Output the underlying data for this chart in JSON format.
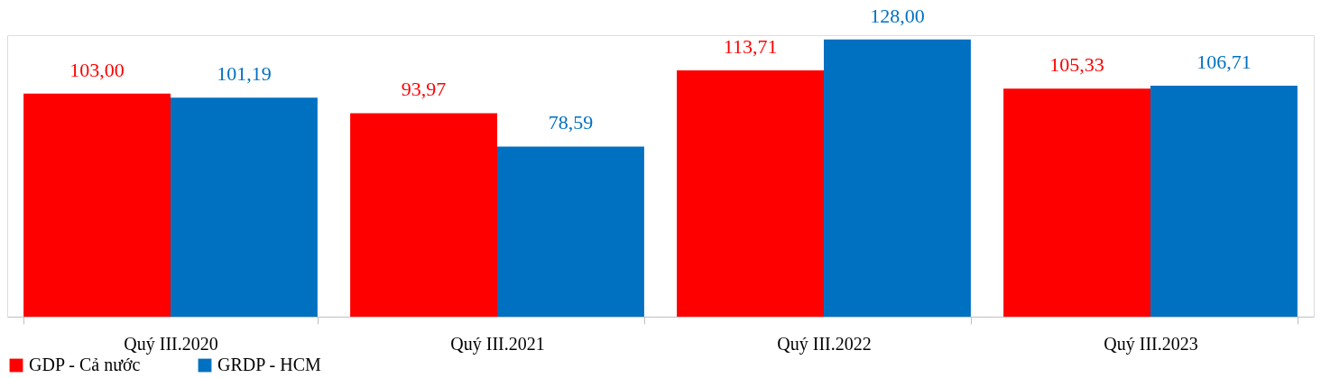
{
  "chart_data": {
    "type": "bar",
    "categories": [
      "Quý III.2020",
      "Quý III.2021",
      "Quý III.2022",
      "Quý III.2023"
    ],
    "series": [
      {
        "name": "GDP - Cả nước",
        "color": "#ff0000",
        "values": [
          103.0,
          93.97,
          113.71,
          105.33
        ],
        "value_labels": [
          "103,00",
          "93,97",
          "113,71",
          "105,33"
        ]
      },
      {
        "name": "GRDP - HCM",
        "color": "#0070c0",
        "values": [
          101.19,
          78.59,
          128.0,
          106.71
        ],
        "value_labels": [
          "101,19",
          "78,59",
          "128,00",
          "106,71"
        ]
      }
    ],
    "legend": "bottom",
    "grid": false
  }
}
